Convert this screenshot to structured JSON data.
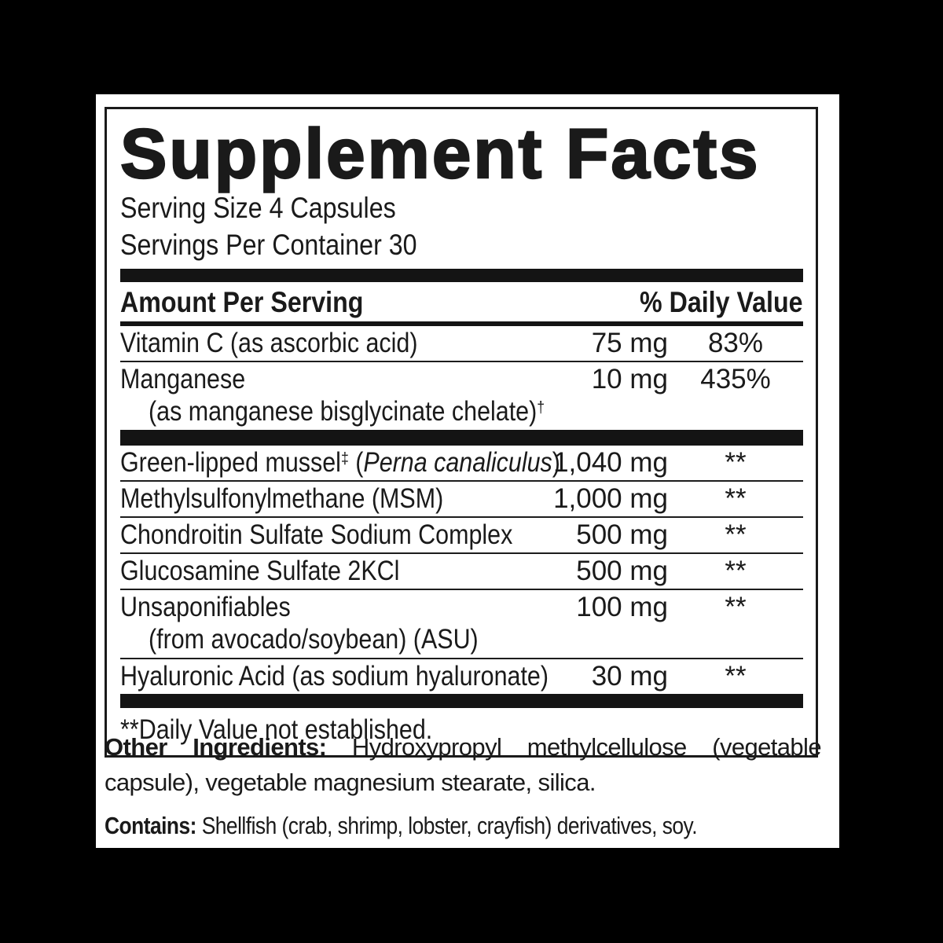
{
  "label": {
    "title": "Supplement Facts",
    "serving_size": "Serving Size 4 Capsules",
    "servings_per_container": "Servings Per Container 30",
    "header": {
      "amount_col": "Amount Per Serving",
      "dv_col": "% Daily Value"
    },
    "rows": [
      {
        "name": "Vitamin C (as ascorbic acid)",
        "amount": "75 mg",
        "dv": "83%"
      },
      {
        "name": "Manganese",
        "amount": "10 mg",
        "dv": "435%",
        "subline": "(as manganese bisglycinate chelate)",
        "subline_sup": "†"
      },
      {
        "name": "Green-lipped mussel",
        "name_sup": "‡",
        "latin_open": " (",
        "latin": "Perna canaliculus",
        "latin_close": ")",
        "amount": "1,040 mg",
        "dv": "**"
      },
      {
        "name": "Methylsulfonylmethane (MSM)",
        "amount": "1,000 mg",
        "dv": "**"
      },
      {
        "name": "Chondroitin Sulfate Sodium Complex",
        "amount": "500 mg",
        "dv": "**"
      },
      {
        "name": "Glucosamine Sulfate 2KCl",
        "amount": "500 mg",
        "dv": "**"
      },
      {
        "name": "Unsaponifiables",
        "amount": "100 mg",
        "dv": "**",
        "subline": "(from avocado/soybean) (ASU)"
      },
      {
        "name": "Hyaluronic Acid (as sodium hyaluronate)",
        "amount": "30 mg",
        "dv": "**"
      }
    ],
    "footnote": "**Daily Value not established.",
    "other_ingredients": {
      "label": "Other Ingredients:",
      "text": " Hydroxypropyl methylcellulose (vegetable capsule), vegetable magnesium stearate, silica."
    },
    "contains": {
      "label": "Contains:",
      "text": " Shellfish (crab, shrimp, lobster, crayfish) derivatives, soy."
    },
    "colors": {
      "ink": "#1a1a1a",
      "paper": "#ffffff",
      "background": "#000000",
      "divider_bar": "#141414"
    }
  }
}
